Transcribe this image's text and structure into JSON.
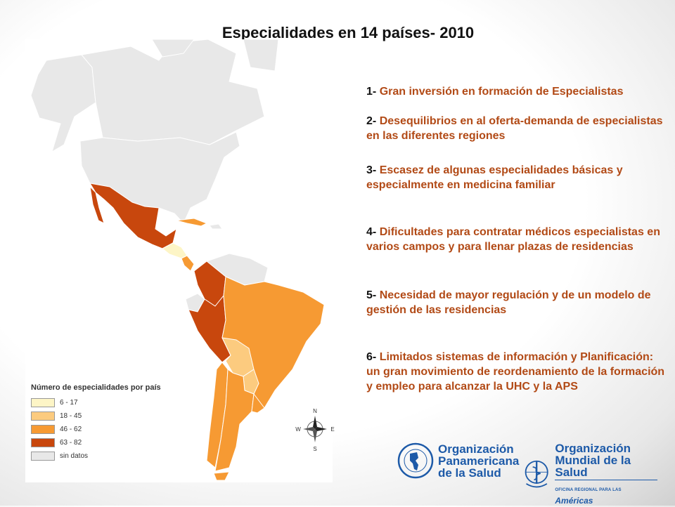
{
  "slide": {
    "title": "Especialidades en 14 países- 2010"
  },
  "map": {
    "legend": {
      "title": "Número de especialidades por país",
      "items": [
        {
          "label": "6 - 17",
          "color": "#fdf5c6"
        },
        {
          "label": "18 - 45",
          "color": "#fccb7f"
        },
        {
          "label": "46 - 62",
          "color": "#f69a33"
        },
        {
          "label": "63 - 82",
          "color": "#c8470d"
        },
        {
          "label": "sin datos",
          "color": "#e8e8e8"
        }
      ]
    },
    "compass": {
      "n": "N",
      "s": "S",
      "e": "E",
      "w": "W"
    },
    "colors": {
      "no_data": "#e8e8e8",
      "low": "#fdf5c6",
      "mid_low": "#fccb7f",
      "mid_high": "#f69a33",
      "high": "#c8470d"
    }
  },
  "points": [
    {
      "num": "1-",
      "text": "Gran inversión en formación de Especialistas"
    },
    {
      "num": "2-",
      "text": "Desequilibrios en al oferta-demanda de especialistas en las diferentes regiones"
    },
    {
      "num": "3-",
      "text": "Escasez de algunas especialidades básicas y especialmente en medicina familiar"
    },
    {
      "num": "4-",
      "text": "Dificultades para contratar médicos especialistas en varios campos y para llenar plazas de residencias"
    },
    {
      "num": "5-",
      "text": "Necesidad de mayor regulación y de un modelo de gestión de las residencias"
    },
    {
      "num": "6-",
      "text": "Limitados sistemas de información y Planificación: un gran movimiento de reordenamiento de la formación y empleo para alcanzar la UHC y la APS"
    }
  ],
  "logos": {
    "paho": {
      "line1": "Organización",
      "line2": "Panamericana",
      "line3": "de la Salud"
    },
    "who": {
      "line1": "Organización",
      "line2": "Mundial de la Salud",
      "sub": "OFICINA REGIONAL PARA LAS",
      "region": "Américas"
    }
  }
}
